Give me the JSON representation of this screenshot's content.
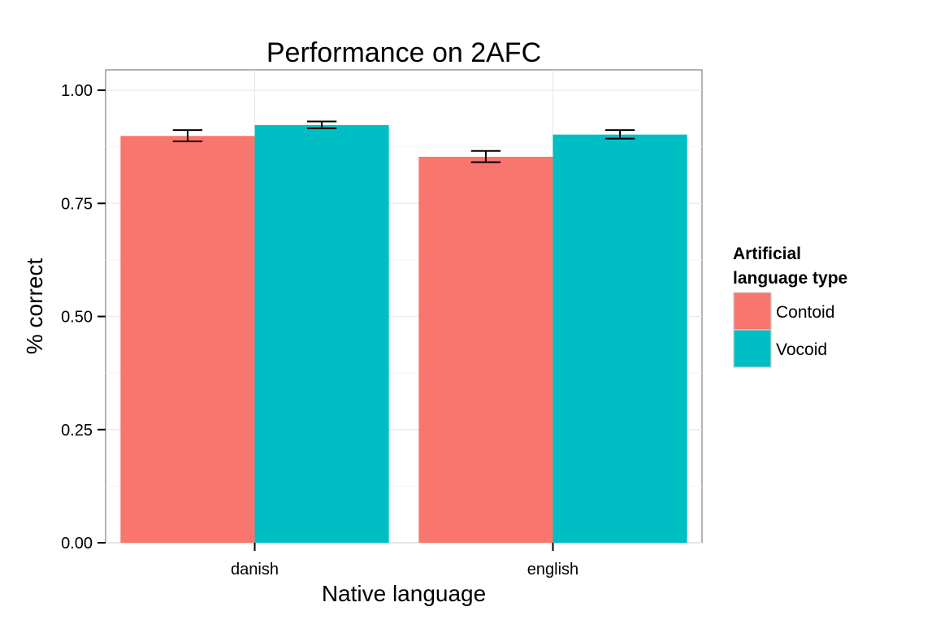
{
  "chart_data": {
    "type": "bar",
    "title": "Performance on 2AFC",
    "xlabel": "Native language",
    "ylabel": "% correct",
    "categories": [
      "danish",
      "english"
    ],
    "ylim": [
      0,
      1
    ],
    "yticks": [
      0,
      0.25,
      0.5,
      0.75,
      1.0
    ],
    "ytick_labels": [
      "0.00",
      "0.25",
      "0.50",
      "0.75",
      "1.00"
    ],
    "grid": true,
    "legend": {
      "title_lines": [
        "Artificial",
        "language type"
      ],
      "placement": "right"
    },
    "series": [
      {
        "name": "Contoid",
        "color": "#F8766D",
        "values": [
          0.899,
          0.853
        ],
        "error_low": [
          0.887,
          0.841
        ],
        "error_high": [
          0.912,
          0.866
        ]
      },
      {
        "name": "Vocoid",
        "color": "#00BFC4",
        "values": [
          0.923,
          0.902
        ],
        "error_low": [
          0.916,
          0.893
        ],
        "error_high": [
          0.931,
          0.912
        ]
      }
    ]
  }
}
